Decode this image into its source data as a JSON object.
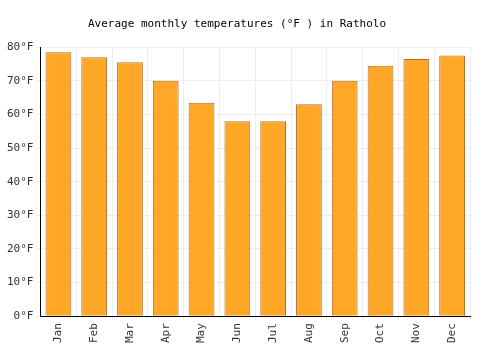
{
  "chart_data": {
    "type": "bar",
    "title": "Average monthly temperatures (°F ) in Ratholo",
    "categories": [
      "Jan",
      "Feb",
      "Mar",
      "Apr",
      "May",
      "Jun",
      "Jul",
      "Aug",
      "Sep",
      "Oct",
      "Nov",
      "Dec"
    ],
    "values": [
      78.5,
      77,
      75.5,
      70,
      63.5,
      58,
      58,
      63,
      70,
      74.5,
      76.5,
      77.5
    ],
    "color": "#ffa726",
    "ylim": [
      0,
      80
    ],
    "yticks": [
      {
        "value": 0,
        "label": "0°F"
      },
      {
        "value": 10,
        "label": "10°F"
      },
      {
        "value": 20,
        "label": "20°F"
      },
      {
        "value": 30,
        "label": "30°F"
      },
      {
        "value": 40,
        "label": "40°F"
      },
      {
        "value": 50,
        "label": "50°F"
      },
      {
        "value": 60,
        "label": "60°F"
      },
      {
        "value": 70,
        "label": "70°F"
      },
      {
        "value": 80,
        "label": "80°F"
      }
    ],
    "grid": true
  }
}
